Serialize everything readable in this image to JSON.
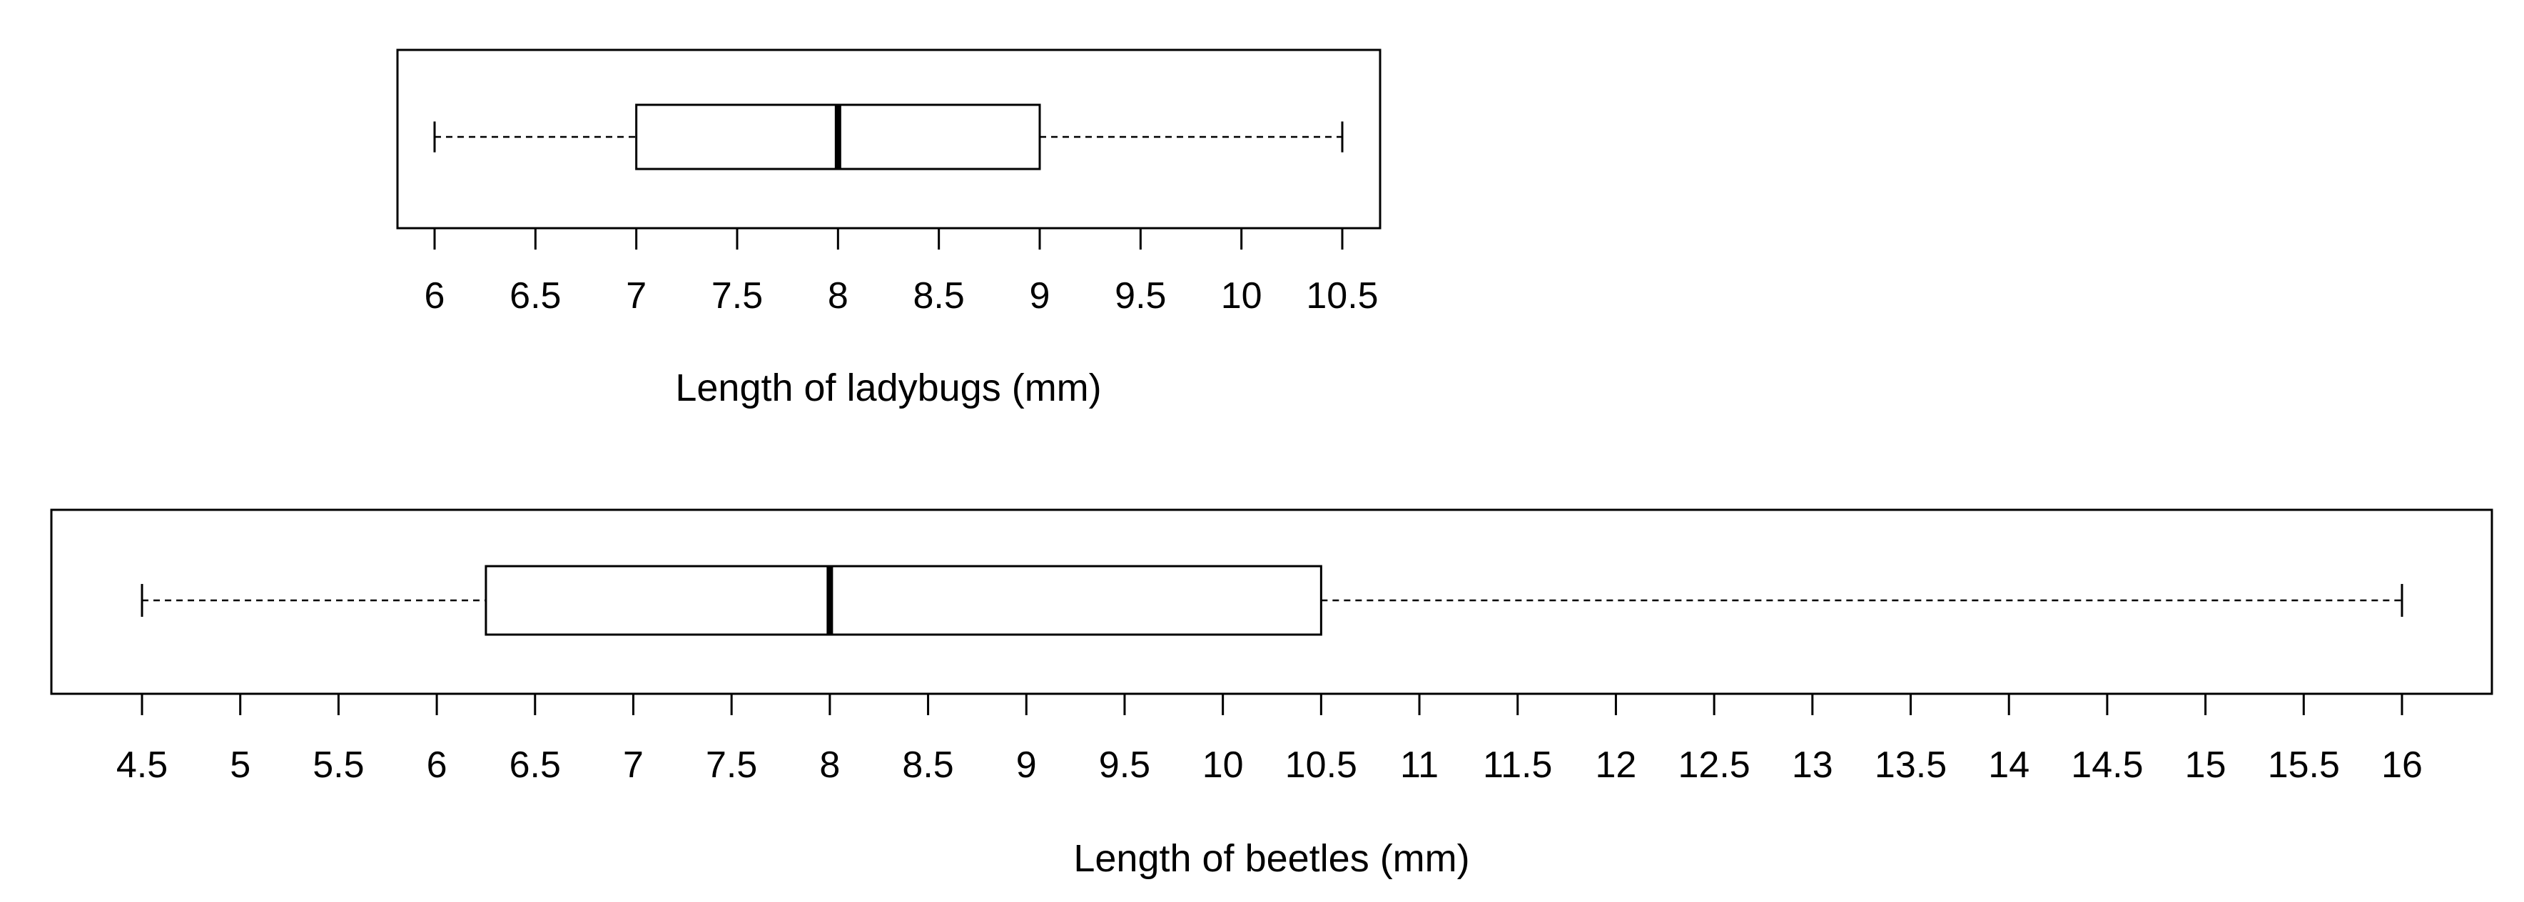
{
  "chart_data": [
    {
      "type": "boxplot",
      "orientation": "horizontal",
      "xlabel": "Length of ladybugs (mm)",
      "xlim": [
        6,
        10.5
      ],
      "ticks": [
        6,
        6.5,
        7,
        7.5,
        8,
        8.5,
        9,
        9.5,
        10,
        10.5
      ],
      "tick_labels": [
        "6",
        "6.5",
        "7",
        "7.5",
        "8",
        "8.5",
        "9",
        "9.5",
        "10",
        "10.5"
      ],
      "box": {
        "min": 6,
        "q1": 7,
        "median": 8,
        "q3": 9,
        "max": 10.5
      }
    },
    {
      "type": "boxplot",
      "orientation": "horizontal",
      "xlabel": "Length of beetles (mm)",
      "xlim": [
        4.5,
        16
      ],
      "ticks": [
        4.5,
        5,
        5.5,
        6,
        6.5,
        7,
        7.5,
        8,
        8.5,
        9,
        9.5,
        10,
        10.5,
        11,
        11.5,
        12,
        12.5,
        13,
        13.5,
        14,
        14.5,
        15,
        15.5,
        16
      ],
      "tick_labels": [
        "4.5",
        "5",
        "5.5",
        "6",
        "6.5",
        "7",
        "7.5",
        "8",
        "8.5",
        "9",
        "9.5",
        "10",
        "10.5",
        "11",
        "11.5",
        "12",
        "12.5",
        "13",
        "13.5",
        "14",
        "14.5",
        "15",
        "15.5",
        "16"
      ],
      "box": {
        "min": 4.5,
        "q1": 6.25,
        "median": 8,
        "q3": 10.5,
        "max": 16
      }
    }
  ]
}
